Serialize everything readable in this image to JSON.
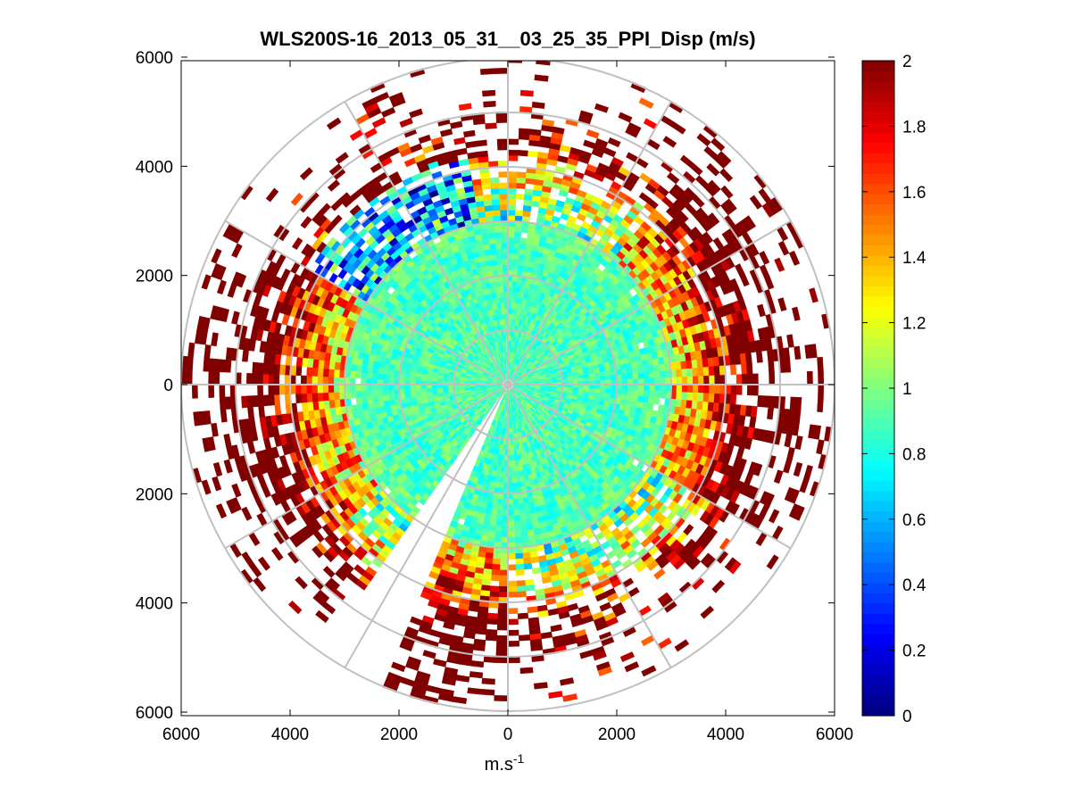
{
  "chart_data": {
    "type": "heatmap",
    "subtype": "polar-ppi-scan",
    "title": "WLS200S-16_2013_05_31__03_25_35_PPI_Disp (m/s)",
    "xlabel_base": "m.s",
    "xlabel_sup": "-1",
    "ylabel": "",
    "xlim": [
      -6000,
      6000
    ],
    "ylim": [
      -6000,
      6000
    ],
    "x_tick_values": [
      -6000,
      -4000,
      -2000,
      0,
      2000,
      4000,
      6000
    ],
    "x_tick_labels": [
      "6000",
      "4000",
      "2000",
      "0",
      "2000",
      "4000",
      "6000"
    ],
    "y_tick_values": [
      6000,
      4000,
      2000,
      0,
      -2000,
      -4000,
      -6000
    ],
    "y_tick_labels": [
      "6000",
      "4000",
      "2000",
      "0",
      "2000",
      "4000",
      "6000"
    ],
    "range_rings_m": [
      1000,
      2000,
      3000,
      4000,
      5000,
      6000
    ],
    "spoke_angles_deg": [
      0,
      30,
      60,
      90,
      120,
      150,
      180,
      210,
      240,
      270,
      300,
      330
    ],
    "grid_color": "#c0c0c0",
    "colormap": "jet",
    "color_range": [
      0,
      2
    ],
    "colorbar_tick_values": [
      0,
      0.2,
      0.4,
      0.6,
      0.8,
      1,
      1.2,
      1.4,
      1.6,
      1.8,
      2
    ],
    "colorbar_tick_labels": [
      "0",
      "0.2",
      "0.4",
      "0.6",
      "0.8",
      "1",
      "1.2",
      "1.4",
      "1.6",
      "1.8",
      "2"
    ],
    "value_profile": {
      "range_m": [
        0,
        1500,
        2500,
        3000,
        3500,
        4000,
        4500,
        5000,
        5500,
        6000
      ],
      "typical_value": [
        0.9,
        0.9,
        0.9,
        0.95,
        1.1,
        1.4,
        1.8,
        2.0,
        2.0,
        2.0
      ],
      "data_coverage": [
        1.0,
        1.0,
        1.0,
        0.97,
        0.85,
        0.65,
        0.45,
        0.25,
        0.12,
        0.05
      ]
    },
    "low_value_sector": {
      "azimuth_deg": [
        300,
        350
      ],
      "range_m": [
        3000,
        4300
      ],
      "value": 0.4
    },
    "high_value_sectors_deg": [
      [
        40,
        120
      ],
      [
        180,
        205
      ],
      [
        230,
        300
      ]
    ],
    "gap_sectors_deg": [
      [
        359,
        361
      ],
      [
        203,
        209
      ],
      [
        211,
        214
      ]
    ]
  }
}
